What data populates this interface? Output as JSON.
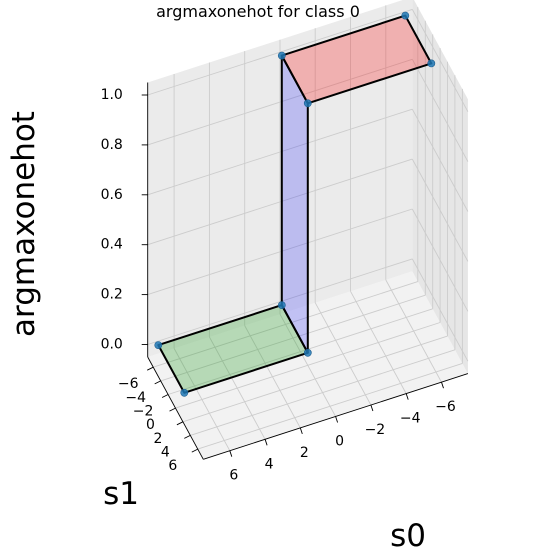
{
  "chart_data": {
    "type": "3d-surface",
    "title": "argmaxonehot for class 0",
    "xlabel": "s0",
    "ylabel": "s1",
    "zlabel": "argmaxonehot",
    "x_ticks": [
      "6",
      "4",
      "2",
      "0",
      "−2",
      "−4",
      "−6"
    ],
    "y_ticks": [
      "−6",
      "−4",
      "−2",
      "0",
      "2",
      "4",
      "6"
    ],
    "z_ticks": [
      "0.0",
      "0.2",
      "0.4",
      "0.6",
      "0.8",
      "1.0"
    ],
    "xlim": [
      -7.5,
      7.5
    ],
    "ylim": [
      -7.5,
      7.5
    ],
    "zlim": [
      -0.05,
      1.05
    ],
    "grid": true,
    "series": [
      {
        "color": "#2ca02c",
        "fill_opacity": 0.3,
        "points": [
          [
            7,
            -7,
            0
          ],
          [
            7,
            0,
            0
          ],
          [
            0,
            0,
            0
          ],
          [
            0,
            -7,
            0
          ]
        ]
      },
      {
        "color": "#0000ff",
        "fill_opacity": 0.2,
        "points": [
          [
            0,
            0,
            0
          ],
          [
            0,
            0,
            1
          ],
          [
            0,
            -7,
            1
          ],
          [
            0,
            -7,
            0
          ]
        ]
      },
      {
        "color": "#ff0000",
        "fill_opacity": 0.25,
        "points": [
          [
            0,
            0,
            1
          ],
          [
            0,
            -7,
            1
          ],
          [
            -7,
            -7,
            1
          ],
          [
            -7,
            0,
            1
          ]
        ]
      }
    ],
    "markers": [
      [
        7,
        -7,
        0
      ],
      [
        7,
        0,
        0
      ],
      [
        0,
        0,
        0
      ],
      [
        0,
        -7,
        0
      ],
      [
        0,
        0,
        1
      ],
      [
        0,
        -7,
        1
      ],
      [
        -7,
        -7,
        1
      ],
      [
        -7,
        0,
        1
      ]
    ],
    "marker_color": "#1f77b4"
  }
}
